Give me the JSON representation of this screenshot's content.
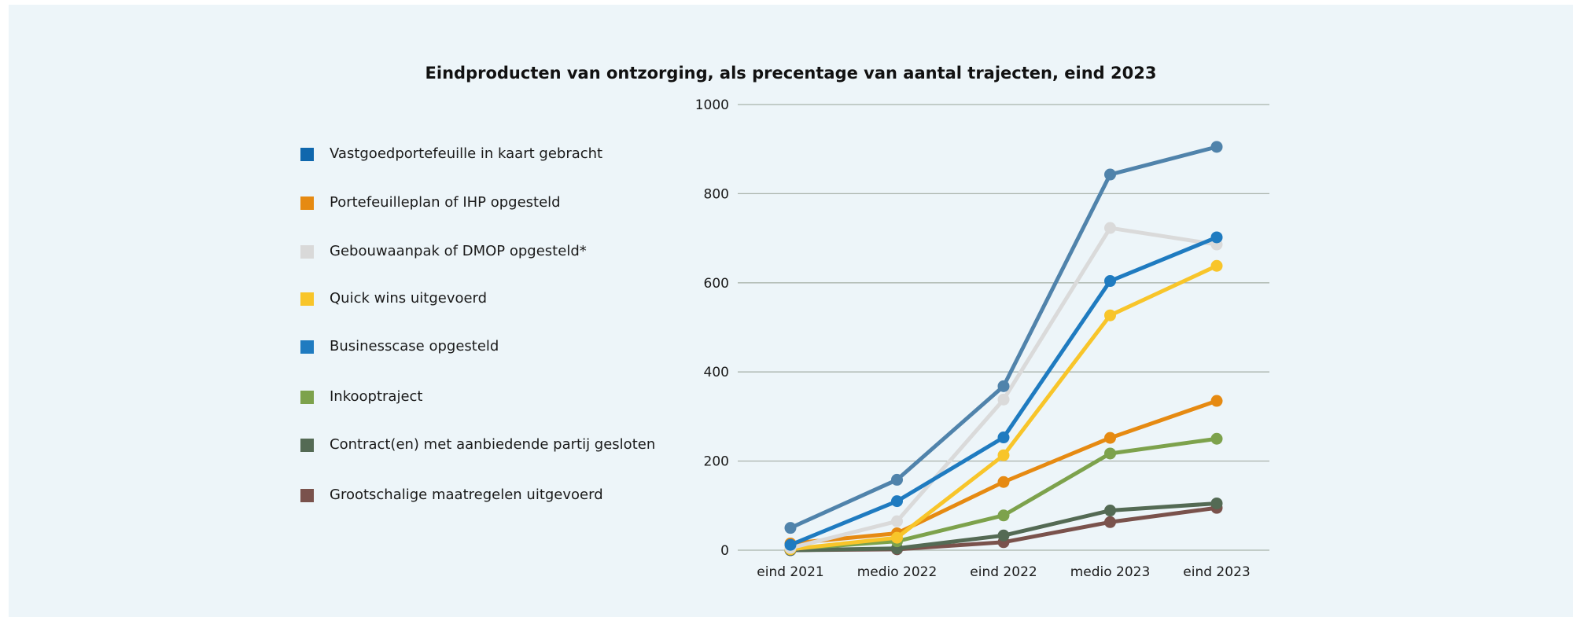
{
  "chart_data": {
    "type": "line",
    "title": "Eindproducten van ontzorging, als precentage van aantal trajecten, eind 2023",
    "xlabel": "",
    "ylabel": "",
    "categories": [
      "eind 2021",
      "medio 2022",
      "eind 2022",
      "medio 2023",
      "eind 2023"
    ],
    "ylim": [
      0,
      1000
    ],
    "yticks": [
      0,
      200,
      400,
      600,
      800,
      1000
    ],
    "ytick_labels": [
      "0",
      "200",
      "400",
      "600",
      "800",
      "1000"
    ],
    "grid": "horizontal",
    "legend_position": "left",
    "series": [
      {
        "name": "Vastgoedportefeuille in kaart gebracht",
        "legend_color": "#0f67ad",
        "line_color": "#5083ab",
        "values": [
          50,
          158,
          368,
          843,
          905
        ]
      },
      {
        "name": "Portefeuilleplan of IHP opgesteld",
        "legend_color": "#e68a12",
        "line_color": "#e68a12",
        "values": [
          15,
          38,
          153,
          252,
          335
        ]
      },
      {
        "name": "Gebouwaanpak of DMOP opgesteld*",
        "legend_color": "#d9d9d9",
        "line_color": "#dadada",
        "values": [
          5,
          65,
          338,
          723,
          686
        ]
      },
      {
        "name": "Quick wins uitgevoerd",
        "legend_color": "#f8c52a",
        "line_color": "#f8c52a",
        "values": [
          2,
          28,
          213,
          527,
          638
        ]
      },
      {
        "name": "Businesscase opgesteld",
        "legend_color": "#1f7bc0",
        "line_color": "#1f7bc0",
        "values": [
          12,
          110,
          253,
          604,
          702
        ]
      },
      {
        "name": "Inkooptraject",
        "legend_color": "#7da24c",
        "line_color": "#7da24c",
        "values": [
          3,
          20,
          78,
          217,
          250
        ]
      },
      {
        "name": "Contract(en) met aanbiedende partij gesloten",
        "legend_color": "#546a54",
        "line_color": "#546a54",
        "values": [
          0,
          4,
          33,
          89,
          105
        ]
      },
      {
        "name": "Grootschalige maatregelen uitgevoerd",
        "legend_color": "#7a524c",
        "line_color": "#7a524c",
        "values": [
          0,
          2,
          18,
          63,
          95
        ]
      }
    ]
  }
}
